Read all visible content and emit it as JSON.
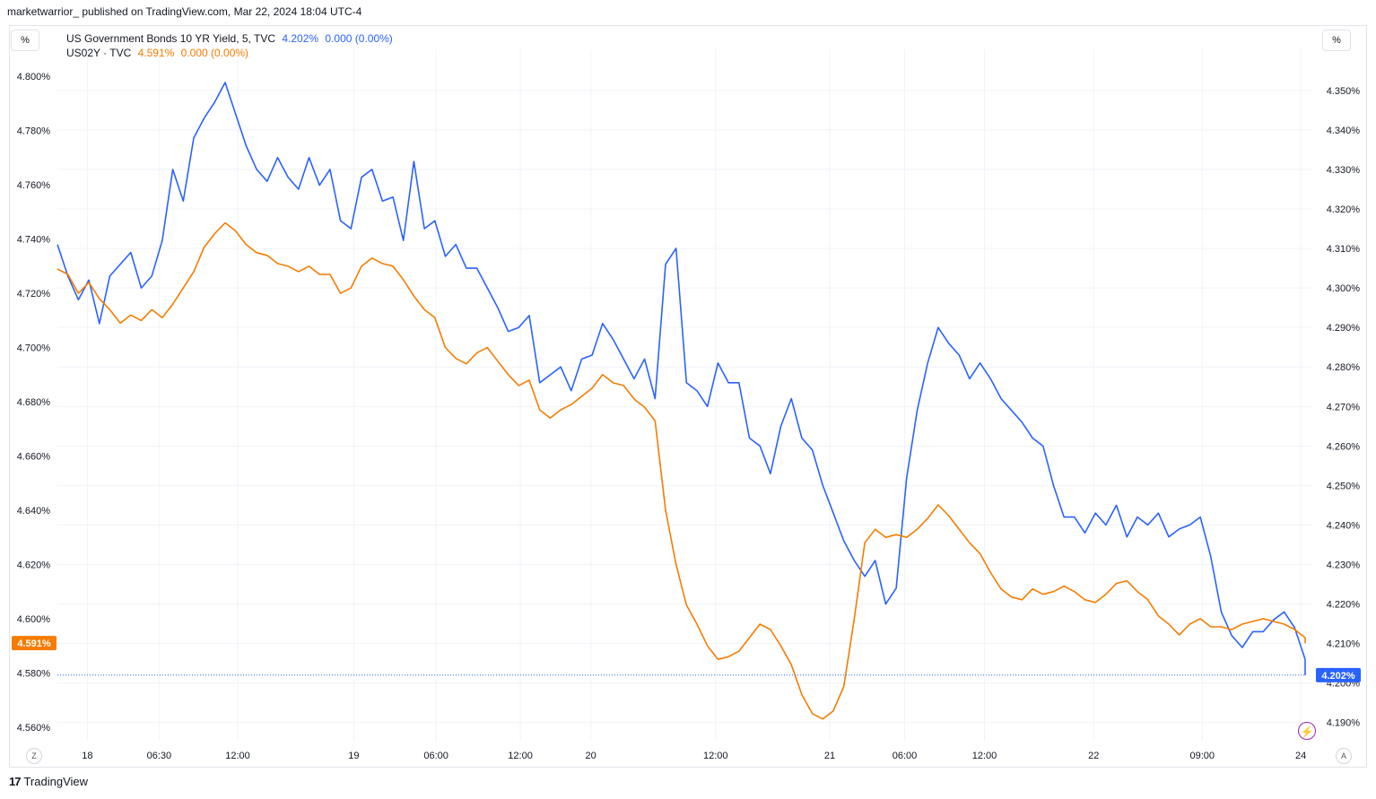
{
  "header": {
    "text": "marketwarrior_ published on TradingView.com, Mar 22, 2024 18:04 UTC-4"
  },
  "unit_left": "%",
  "unit_right": "%",
  "legend": {
    "s1_name": "US Government Bonds 10 YR Yield, 5, TVC",
    "s1_value": "4.202%",
    "s1_change": "0.000 (0.00%)",
    "s2_name": "US02Y · TVC",
    "s2_value": "4.591%",
    "s2_change": "0.000 (0.00%)"
  },
  "footer": {
    "logo": "17",
    "brand": "TradingView"
  },
  "buttons": {
    "z": "Z",
    "a": "A"
  },
  "colors": {
    "us10y": "#2962ff",
    "us02y": "#f57c00",
    "grid": "#f0f3fa",
    "axis_text": "#131722"
  },
  "chart_data": {
    "type": "line",
    "x_tick_labels": [
      "18",
      "06:30",
      "12:00",
      "19",
      "06:00",
      "12:00",
      "20",
      "12:00",
      "21",
      "06:00",
      "12:00",
      "22",
      "09:00",
      "24"
    ],
    "left_axis": {
      "ylim": [
        4.555,
        4.81
      ],
      "ticks": [
        "4.800%",
        "4.780%",
        "4.760%",
        "4.740%",
        "4.720%",
        "4.700%",
        "4.680%",
        "4.660%",
        "4.640%",
        "4.620%",
        "4.600%",
        "4.580%",
        "4.560%"
      ],
      "series": "US02Y"
    },
    "right_axis": {
      "ylim": [
        4.1854,
        4.3604
      ],
      "ticks": [
        "4.350%",
        "4.340%",
        "4.330%",
        "4.320%",
        "4.310%",
        "4.300%",
        "4.290%",
        "4.280%",
        "4.270%",
        "4.260%",
        "4.250%",
        "4.240%",
        "4.230%",
        "4.220%",
        "4.210%",
        "4.200%",
        "4.190%"
      ],
      "series": "US10Y"
    },
    "last_label_left": "4.591%",
    "last_label_right": "4.202%",
    "series": [
      {
        "name": "US Government Bonds 10 YR Yield, 5, TVC",
        "axis": "right",
        "x": [
          0,
          1,
          2,
          3,
          4,
          5,
          6,
          7,
          8,
          9,
          10,
          11,
          12,
          13,
          14,
          15,
          16,
          17,
          18,
          19,
          20,
          21,
          22,
          23,
          24,
          25,
          26,
          27,
          28,
          29,
          30,
          31,
          32,
          33,
          34,
          35,
          36,
          37,
          38,
          39,
          40,
          41,
          42,
          43,
          44,
          45,
          46,
          47,
          48,
          49,
          50,
          51,
          52,
          53,
          54,
          55,
          56,
          57,
          58,
          59,
          60,
          61,
          62,
          63,
          64,
          65,
          66,
          67,
          68,
          69,
          70,
          71,
          72,
          73,
          74,
          75,
          76,
          77,
          78,
          79,
          80,
          81,
          82,
          83,
          84,
          85,
          86,
          87,
          88,
          89,
          90,
          91,
          92,
          93,
          94,
          95,
          96,
          97,
          98,
          99,
          100,
          101,
          102,
          103,
          104,
          105,
          106,
          107,
          108,
          109,
          110,
          111,
          112,
          113,
          114,
          115,
          116,
          117,
          118,
          119
        ],
        "values": [
          4.311,
          4.303,
          4.297,
          4.302,
          4.291,
          4.303,
          4.306,
          4.309,
          4.3,
          4.303,
          4.312,
          4.33,
          4.322,
          4.338,
          4.343,
          4.347,
          4.352,
          4.344,
          4.336,
          4.33,
          4.327,
          4.333,
          4.328,
          4.325,
          4.333,
          4.326,
          4.33,
          4.317,
          4.315,
          4.328,
          4.33,
          4.322,
          4.323,
          4.312,
          4.332,
          4.315,
          4.317,
          4.308,
          4.311,
          4.305,
          4.305,
          4.3,
          4.295,
          4.289,
          4.29,
          4.293,
          4.276,
          4.278,
          4.28,
          4.274,
          4.282,
          4.283,
          4.291,
          4.287,
          4.282,
          4.277,
          4.282,
          4.272,
          4.306,
          4.31,
          4.276,
          4.274,
          4.27,
          4.281,
          4.276,
          4.276,
          4.262,
          4.26,
          4.253,
          4.265,
          4.272,
          4.262,
          4.259,
          4.25,
          4.243,
          4.236,
          4.231,
          4.227,
          4.231,
          4.22,
          4.224,
          4.252,
          4.269,
          4.281,
          4.29,
          4.286,
          4.283,
          4.277,
          4.281,
          4.277,
          4.272,
          4.269,
          4.266,
          4.262,
          4.26,
          4.25,
          4.242,
          4.242,
          4.238,
          4.243,
          4.24,
          4.245,
          4.237,
          4.242,
          4.24,
          4.243,
          4.237,
          4.239,
          4.24,
          4.242,
          4.232,
          4.218,
          4.212,
          4.209,
          4.213,
          4.213,
          4.216,
          4.218,
          4.214,
          4.206
        ],
        "end_value": 4.202
      },
      {
        "name": "US02Y · TVC",
        "axis": "left",
        "x": [
          0,
          1,
          2,
          3,
          4,
          5,
          6,
          7,
          8,
          9,
          10,
          11,
          12,
          13,
          14,
          15,
          16,
          17,
          18,
          19,
          20,
          21,
          22,
          23,
          24,
          25,
          26,
          27,
          28,
          29,
          30,
          31,
          32,
          33,
          34,
          35,
          36,
          37,
          38,
          39,
          40,
          41,
          42,
          43,
          44,
          45,
          46,
          47,
          48,
          49,
          50,
          51,
          52,
          53,
          54,
          55,
          56,
          57,
          58,
          59,
          60,
          61,
          62,
          63,
          64,
          65,
          66,
          67,
          68,
          69,
          70,
          71,
          72,
          73,
          74,
          75,
          76,
          77,
          78,
          79,
          80,
          81,
          82,
          83,
          84,
          85,
          86,
          87,
          88,
          89,
          90,
          91,
          92,
          93,
          94,
          95,
          96,
          97,
          98,
          99,
          100,
          101,
          102,
          103,
          104,
          105,
          106,
          107,
          108,
          109,
          110,
          111,
          112,
          113,
          114,
          115,
          116,
          117,
          118,
          119
        ],
        "values": [
          4.729,
          4.727,
          4.72,
          4.724,
          4.718,
          4.714,
          4.709,
          4.712,
          4.71,
          4.714,
          4.711,
          4.716,
          4.722,
          4.728,
          4.737,
          4.742,
          4.746,
          4.743,
          4.738,
          4.735,
          4.734,
          4.731,
          4.73,
          4.728,
          4.73,
          4.727,
          4.727,
          4.72,
          4.722,
          4.73,
          4.733,
          4.731,
          4.73,
          4.725,
          4.719,
          4.714,
          4.711,
          4.7,
          4.696,
          4.694,
          4.698,
          4.7,
          4.695,
          4.69,
          4.686,
          4.688,
          4.677,
          4.674,
          4.677,
          4.679,
          4.682,
          4.685,
          4.69,
          4.687,
          4.686,
          4.681,
          4.678,
          4.673,
          4.64,
          4.62,
          4.605,
          4.598,
          4.59,
          4.585,
          4.586,
          4.588,
          4.593,
          4.598,
          4.596,
          4.59,
          4.583,
          4.572,
          4.565,
          4.563,
          4.566,
          4.575,
          4.6,
          4.628,
          4.633,
          4.63,
          4.631,
          4.63,
          4.633,
          4.637,
          4.642,
          4.638,
          4.633,
          4.628,
          4.624,
          4.617,
          4.611,
          4.608,
          4.607,
          4.611,
          4.609,
          4.61,
          4.612,
          4.61,
          4.607,
          4.606,
          4.609,
          4.613,
          4.614,
          4.61,
          4.607,
          4.601,
          4.598,
          4.594,
          4.598,
          4.6,
          4.597,
          4.597,
          4.596,
          4.598,
          4.599,
          4.6,
          4.599,
          4.598,
          4.596,
          4.593
        ],
        "end_value": 4.591
      }
    ]
  }
}
